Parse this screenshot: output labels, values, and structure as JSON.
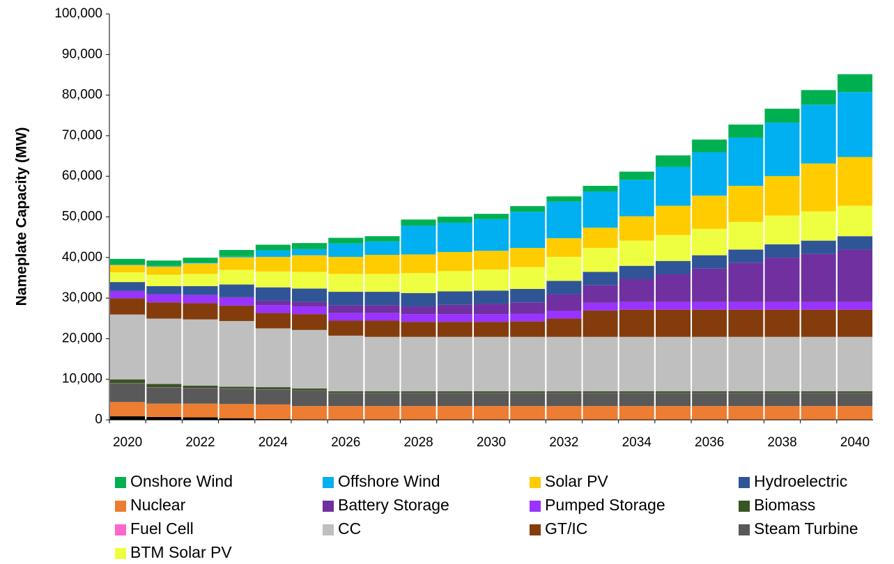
{
  "chart_data": {
    "type": "stacked_bar",
    "y_label": "Nameplate Capacity (MW)",
    "categories": [
      "2020",
      null,
      "2022",
      null,
      "2024",
      null,
      "2026",
      null,
      "2028",
      null,
      "2030",
      null,
      "2032",
      null,
      "2034",
      null,
      "2036",
      null,
      "2038",
      null,
      "2040"
    ],
    "ylim": [
      0,
      100000
    ],
    "yticks": [
      0,
      {
        "value": 10000,
        "label": "10,000"
      },
      {
        "value": 20000,
        "label": "20,000"
      },
      {
        "value": 30000,
        "label": "30,000"
      },
      {
        "value": 40000,
        "label": "40,000"
      },
      {
        "value": 50000,
        "label": "50,000"
      },
      {
        "value": 60000,
        "label": "60,000"
      },
      {
        "value": 70000,
        "label": "70,000"
      },
      {
        "value": 80000,
        "label": "80,000"
      },
      {
        "value": 90000,
        "label": "90,000"
      },
      {
        "value": 100000,
        "label": "100,000"
      }
    ],
    "series": [
      {
        "name": "Onshore Wind",
        "color": "#00b050",
        "values": [
          1400,
          1300,
          1200,
          1500,
          1400,
          1500,
          1400,
          1300,
          1500,
          1500,
          1300,
          1400,
          1300,
          1400,
          2000,
          2800,
          3100,
          3200,
          3400,
          3600,
          4400
        ]
      },
      {
        "name": "Offshore Wind",
        "color": "#00b0f0",
        "values": [
          100,
          200,
          200,
          300,
          1600,
          1500,
          3300,
          3300,
          7100,
          7200,
          7800,
          8900,
          9000,
          8900,
          9000,
          9600,
          10700,
          11900,
          13200,
          14500,
          16000
        ]
      },
      {
        "name": "Solar PV",
        "color": "#ffcc00",
        "values": [
          1800,
          2000,
          2600,
          3100,
          3600,
          4100,
          4200,
          4700,
          4600,
          4700,
          4600,
          4700,
          4600,
          5000,
          6000,
          7200,
          8200,
          8900,
          9700,
          11800,
          12000
        ]
      },
      {
        "name": "Hydroelectric",
        "color": "#2f5597",
        "values": [
          2200,
          2000,
          2200,
          3100,
          3300,
          3300,
          3300,
          3300,
          3300,
          3300,
          3300,
          3300,
          3300,
          3300,
          3300,
          3300,
          3300,
          3300,
          3300,
          3300,
          3300
        ]
      },
      {
        "name": "Nuclear",
        "color": "#ed7d31",
        "values": [
          3500,
          3300,
          3400,
          3500,
          3600,
          3400,
          3400,
          3400,
          3400,
          3400,
          3400,
          3400,
          3400,
          3400,
          3400,
          3400,
          3400,
          3400,
          3400,
          3400,
          3400
        ]
      },
      {
        "name": "Battery Storage",
        "color": "#7030a0",
        "values": [
          0,
          0,
          0,
          200,
          1100,
          1100,
          1900,
          1900,
          1900,
          2300,
          2500,
          2800,
          4100,
          4300,
          5600,
          6800,
          8200,
          9600,
          10900,
          11800,
          12900
        ]
      },
      {
        "name": "Pumped Storage",
        "color": "#9933ff",
        "values": [
          1800,
          2000,
          2000,
          1900,
          1900,
          1900,
          1900,
          1900,
          1900,
          1900,
          1900,
          1900,
          1900,
          1900,
          1900,
          1900,
          1900,
          1900,
          1900,
          1900,
          1900
        ]
      },
      {
        "name": "Biomass",
        "color": "#375623",
        "values": [
          900,
          800,
          600,
          500,
          500,
          500,
          400,
          400,
          400,
          400,
          400,
          400,
          400,
          400,
          400,
          400,
          400,
          400,
          400,
          400,
          400
        ]
      },
      {
        "name": "Fuel Cell",
        "color": "#ff66cc",
        "values": [
          50,
          50,
          50,
          50,
          50,
          50,
          50,
          50,
          50,
          50,
          50,
          50,
          50,
          50,
          50,
          50,
          50,
          50,
          50,
          50,
          50
        ]
      },
      {
        "name": "CC",
        "color": "#bfbfbf",
        "values": [
          16000,
          16100,
          16300,
          16200,
          14500,
          14400,
          13700,
          13400,
          13400,
          13400,
          13400,
          13400,
          13400,
          13400,
          13400,
          13400,
          13400,
          13400,
          13400,
          13400,
          13400
        ]
      },
      {
        "name": "GT/IC",
        "color": "#843c0c",
        "values": [
          4000,
          4000,
          4000,
          3800,
          3800,
          3900,
          3700,
          4000,
          3700,
          3700,
          3700,
          3800,
          4500,
          6500,
          6700,
          6700,
          6700,
          6700,
          6700,
          6700,
          6700
        ]
      },
      {
        "name": "Steam Turbine",
        "color": "#595959",
        "values": [
          4600,
          4000,
          3800,
          3700,
          3700,
          3800,
          3200,
          3200,
          3200,
          3200,
          3200,
          3200,
          3200,
          3200,
          3200,
          3200,
          3200,
          3200,
          3200,
          3200,
          3200
        ]
      },
      {
        "name": "BTM Solar PV",
        "color": "#eeff41",
        "values": [
          2400,
          2800,
          3000,
          3600,
          3900,
          4100,
          4400,
          4400,
          4900,
          5000,
          5200,
          5400,
          5900,
          5900,
          6200,
          6400,
          6500,
          6800,
          7100,
          7200,
          7500
        ]
      },
      {
        "color": "#000000",
        "values": [
          900,
          700,
          600,
          400,
          200,
          0,
          0,
          0,
          0,
          0,
          0,
          0,
          0,
          0,
          0,
          0,
          0,
          0,
          0,
          0,
          0
        ]
      }
    ]
  }
}
